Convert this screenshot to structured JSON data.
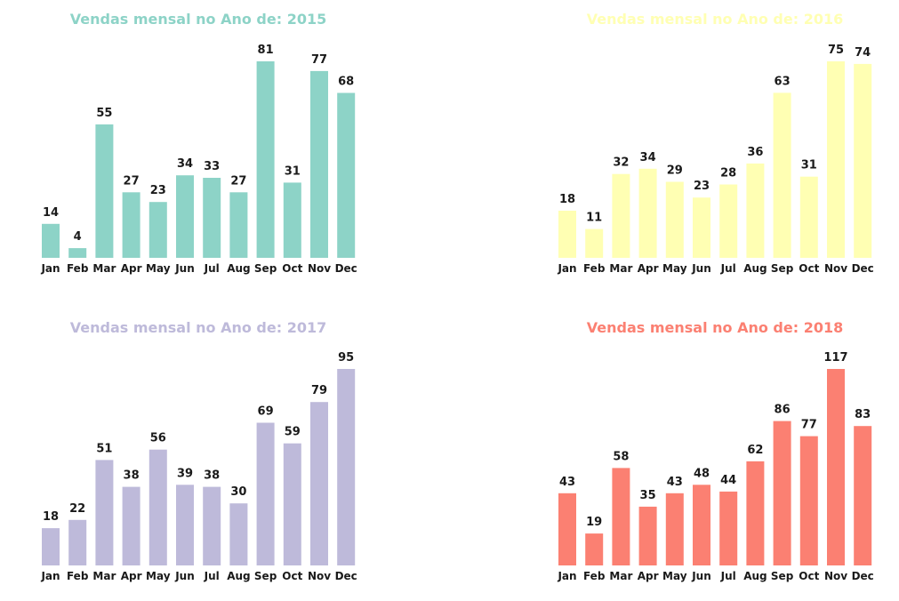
{
  "chart_data": [
    {
      "type": "bar",
      "title": "Vendas mensal no Ano de: 2015",
      "color": "#8dd3c7",
      "categories": [
        "Jan",
        "Feb",
        "Mar",
        "Apr",
        "May",
        "Jun",
        "Jul",
        "Aug",
        "Sep",
        "Oct",
        "Nov",
        "Dec"
      ],
      "values": [
        14,
        4,
        55,
        27,
        23,
        34,
        33,
        27,
        81,
        31,
        77,
        68
      ],
      "value_labels": [
        "14",
        "4",
        "55",
        "27",
        "23",
        "34",
        "33",
        "27",
        "81",
        "31",
        "77",
        "68"
      ],
      "ylim": [
        0,
        81
      ]
    },
    {
      "type": "bar",
      "title": "Vendas mensal no Ano de: 2016",
      "color": "#ffffb3",
      "categories": [
        "Jan",
        "Feb",
        "Mar",
        "Apr",
        "May",
        "Jun",
        "Jul",
        "Aug",
        "Sep",
        "Oct",
        "Nov",
        "Dec"
      ],
      "values": [
        18,
        11,
        32,
        34,
        29,
        23,
        28,
        36,
        63,
        31,
        75,
        74
      ],
      "value_labels": [
        "18",
        "11",
        "32",
        "34",
        "29",
        "23",
        "28",
        "36",
        "63",
        "31",
        "75",
        "74"
      ],
      "ylim": [
        0,
        75
      ]
    },
    {
      "type": "bar",
      "title": "Vendas mensal no Ano de: 2017",
      "color": "#bebada",
      "categories": [
        "Jan",
        "Feb",
        "Mar",
        "Apr",
        "May",
        "Jun",
        "Jul",
        "Aug",
        "Sep",
        "Oct",
        "Nov",
        "Dec"
      ],
      "values": [
        18,
        22,
        51,
        38,
        56,
        39,
        38,
        30,
        69,
        59,
        79,
        95
      ],
      "value_labels": [
        "18",
        "22",
        "51",
        "38",
        "56",
        "39",
        "38",
        "30",
        "69",
        "59",
        "79",
        "95"
      ],
      "ylim": [
        0,
        95
      ]
    },
    {
      "type": "bar",
      "title": "Vendas mensal no Ano de: 2018",
      "color": "#fb8072",
      "categories": [
        "Jan",
        "Feb",
        "Mar",
        "Apr",
        "May",
        "Jun",
        "Jul",
        "Aug",
        "Sep",
        "Oct",
        "Nov",
        "Dec"
      ],
      "values": [
        43,
        19,
        58,
        35,
        43,
        48,
        44,
        62,
        86,
        77,
        117,
        83
      ],
      "value_labels": [
        "43",
        "19",
        "58",
        "35",
        "43",
        "48",
        "44",
        "62",
        "86",
        "77",
        "117",
        "83"
      ],
      "ylim": [
        0,
        117
      ]
    }
  ]
}
